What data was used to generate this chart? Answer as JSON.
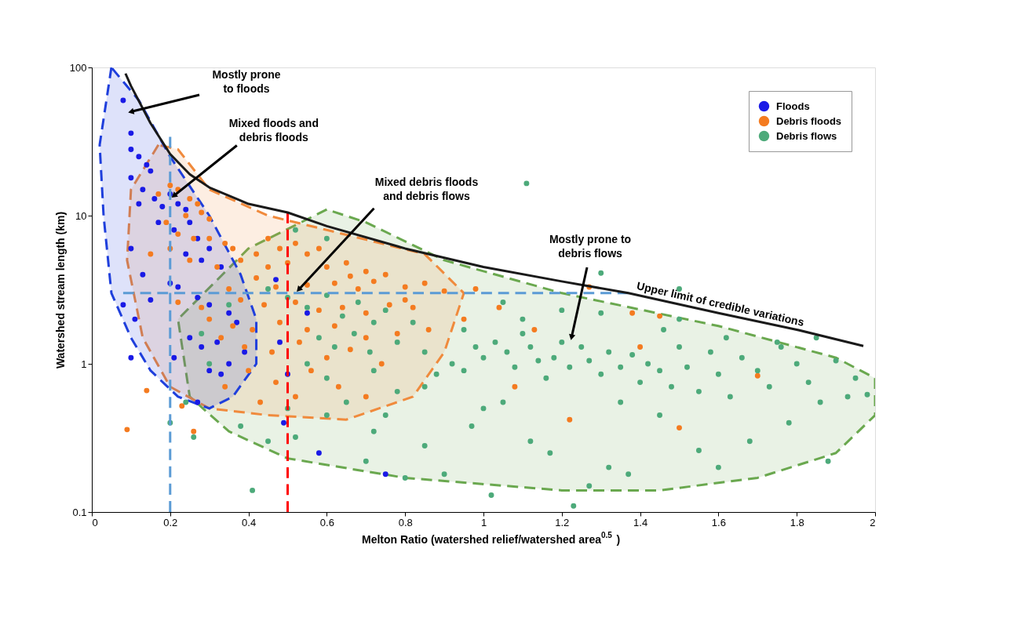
{
  "chart_data": {
    "type": "scatter",
    "xlabel": "Melton Ratio (watershed relief/watershed area$^{0.5}$)",
    "ylabel": "Watershed stream length (km)",
    "xlim": [
      0,
      2
    ],
    "xticks": [
      0,
      0.2,
      0.4,
      0.6,
      0.8,
      1,
      1.2,
      1.4,
      1.6,
      1.8,
      2
    ],
    "ylim": [
      0.1,
      100
    ],
    "yticks": [
      0.1,
      1,
      10,
      100
    ],
    "log": "y",
    "grid": false,
    "legend": "top right",
    "annotations": [
      "Mostly prone\nto floods",
      {
        "text": "Mixed floods and\ndebris floods",
        "x": 0.2,
        "y": 13
      },
      {
        "text": "Mixed debris floods\nand debris flows",
        "x": 0.52,
        "y": 3
      },
      "Mostly prone to\ndebris flows"
    ],
    "series": [
      {
        "type": "area",
        "color": "#6aa84f",
        "line_style": "dashed",
        "x": [
          0.6,
          0.4,
          0.22,
          0.25,
          0.35,
          0.5,
          0.8,
          1.2,
          1.45,
          1.7,
          1.9,
          2.0,
          2.0,
          1.9,
          1.6,
          1.2,
          0.9,
          0.7,
          0.6
        ],
        "values": [
          11,
          6,
          2,
          0.6,
          0.35,
          0.23,
          0.17,
          0.14,
          0.14,
          0.17,
          0.25,
          0.45,
          0.8,
          1.1,
          1.8,
          3,
          5,
          9,
          11
        ]
      },
      {
        "type": "area",
        "color": "#f08a3c",
        "line_style": "dashed",
        "x": [
          0.17,
          0.1,
          0.09,
          0.13,
          0.2,
          0.3,
          0.45,
          0.65,
          0.82,
          0.9,
          0.95,
          0.85,
          0.6,
          0.45,
          0.3,
          0.22,
          0.17
        ],
        "values": [
          30,
          15,
          5,
          1.5,
          0.7,
          0.5,
          0.45,
          0.42,
          0.6,
          1.2,
          3,
          5.5,
          8,
          10,
          15,
          28,
          30
        ]
      },
      {
        "type": "area",
        "color": "#1f3fdc",
        "line_style": "dashed",
        "x": [
          0.05,
          0.02,
          0.03,
          0.05,
          0.1,
          0.15,
          0.22,
          0.3,
          0.36,
          0.42,
          0.42,
          0.38,
          0.3,
          0.2,
          0.12,
          0.05
        ],
        "values": [
          100,
          30,
          10,
          3,
          1.5,
          0.9,
          0.6,
          0.5,
          0.6,
          1,
          2,
          4,
          10,
          25,
          60,
          100
        ]
      },
      {
        "type": "scatter",
        "marker": "circle",
        "name": "Floods",
        "color": "#1a1ae6",
        "x": [
          0.08,
          0.1,
          0.1,
          0.12,
          0.14,
          0.15,
          0.13,
          0.16,
          0.1,
          0.12,
          0.17,
          0.2,
          0.22,
          0.24,
          0.18,
          0.21,
          0.25,
          0.27,
          0.3,
          0.24,
          0.28,
          0.33,
          0.1,
          0.13,
          0.2,
          0.22,
          0.15,
          0.27,
          0.3,
          0.35,
          0.11,
          0.37,
          0.25,
          0.28,
          0.32,
          0.21,
          0.3,
          0.35,
          0.39,
          0.1,
          0.08,
          0.5,
          0.48,
          0.58,
          0.75,
          0.49,
          0.55,
          0.47,
          0.27,
          0.33
        ],
        "values": [
          60,
          36,
          28,
          25,
          22,
          20,
          15,
          13,
          18,
          12,
          9,
          14,
          12,
          11,
          11.5,
          8,
          9,
          7,
          6,
          5.5,
          5,
          4.5,
          6,
          4,
          3.5,
          3.3,
          2.7,
          2.8,
          2.5,
          2.2,
          2,
          1.9,
          1.5,
          1.3,
          1.4,
          1.1,
          0.9,
          1,
          1.2,
          1.1,
          2.5,
          0.85,
          1.4,
          0.25,
          0.18,
          0.4,
          2.2,
          3.7,
          0.55,
          0.85
        ]
      },
      {
        "type": "scatter",
        "marker": "circle",
        "name": "Debris floods",
        "color": "#f47b20",
        "x": [
          0.17,
          0.2,
          0.22,
          0.25,
          0.27,
          0.24,
          0.28,
          0.3,
          0.19,
          0.22,
          0.26,
          0.3,
          0.34,
          0.36,
          0.38,
          0.2,
          0.15,
          0.25,
          0.32,
          0.42,
          0.45,
          0.48,
          0.52,
          0.55,
          0.58,
          0.45,
          0.5,
          0.6,
          0.65,
          0.7,
          0.75,
          0.42,
          0.47,
          0.55,
          0.62,
          0.68,
          0.72,
          0.8,
          0.85,
          0.9,
          0.35,
          0.38,
          0.44,
          0.52,
          0.58,
          0.64,
          0.7,
          0.76,
          0.82,
          0.28,
          0.22,
          0.3,
          0.36,
          0.41,
          0.48,
          0.55,
          0.62,
          0.7,
          0.78,
          0.86,
          0.33,
          0.39,
          0.46,
          0.53,
          0.6,
          0.66,
          0.74,
          0.4,
          0.47,
          0.56,
          0.63,
          0.7,
          0.34,
          0.43,
          0.52,
          0.66,
          0.98,
          0.8,
          1.5,
          1.7,
          1.4,
          1.22,
          1.08,
          0.09,
          0.14,
          0.23,
          0.26,
          1.27,
          1.38,
          1.45,
          1.13,
          1.04,
          0.95
        ],
        "values": [
          14,
          16,
          15,
          13,
          12,
          10,
          10.5,
          9.5,
          9,
          7.5,
          7,
          7,
          6.5,
          6,
          5,
          6,
          5.5,
          5,
          4.5,
          5.5,
          7,
          6,
          6.5,
          5.5,
          6,
          4.5,
          4.8,
          4.5,
          4.8,
          4.2,
          4,
          3.8,
          3.3,
          3.4,
          3.5,
          3.2,
          3.6,
          3.3,
          3.5,
          3.1,
          3.2,
          2.7,
          2.5,
          2.6,
          2.3,
          2.4,
          2.2,
          2.5,
          2.4,
          2.4,
          2.6,
          2,
          1.8,
          1.7,
          1.9,
          1.7,
          1.8,
          1.5,
          1.6,
          1.7,
          1.5,
          1.3,
          1.2,
          1.4,
          1.1,
          1.25,
          1,
          0.9,
          0.75,
          0.9,
          0.7,
          0.6,
          0.7,
          0.55,
          0.6,
          3.9,
          3.2,
          2.7,
          0.37,
          0.83,
          1.3,
          0.42,
          0.7,
          0.36,
          0.66,
          0.52,
          0.35,
          3.3,
          2.2,
          2.1,
          1.7,
          2.4,
          2
        ]
      },
      {
        "type": "scatter",
        "marker": "circle",
        "name": "Debris flows",
        "color": "#4daa7a",
        "x": [
          0.2,
          0.24,
          0.26,
          0.38,
          0.41,
          0.3,
          0.35,
          0.28,
          0.52,
          0.6,
          0.45,
          0.5,
          0.55,
          0.6,
          0.64,
          0.68,
          0.72,
          0.75,
          0.58,
          0.62,
          0.67,
          0.71,
          0.78,
          0.82,
          0.85,
          0.55,
          0.6,
          0.65,
          0.72,
          0.78,
          0.85,
          0.5,
          0.45,
          0.52,
          0.6,
          0.72,
          0.85,
          0.88,
          0.92,
          0.95,
          0.98,
          1.0,
          1.03,
          1.06,
          1.08,
          1.1,
          1.12,
          1.14,
          1.16,
          1.18,
          1.2,
          1.22,
          1.25,
          1.27,
          1.3,
          1.32,
          1.35,
          1.38,
          1.4,
          1.42,
          1.45,
          1.48,
          1.5,
          1.52,
          1.55,
          1.58,
          1.6,
          1.63,
          1.66,
          1.7,
          1.73,
          1.76,
          1.8,
          1.83,
          1.86,
          1.9,
          1.93,
          1.98,
          1.95,
          1.5,
          1.46,
          1.62,
          1.75,
          1.85,
          1.3,
          1.2,
          1.1,
          1.05,
          0.95,
          1.0,
          0.97,
          1.05,
          1.12,
          1.17,
          1.27,
          1.32,
          1.37,
          1.02,
          1.23,
          1.55,
          1.6,
          1.68,
          1.78,
          1.88,
          1.45,
          1.35,
          1.11,
          1.3,
          1.5,
          0.7,
          0.8,
          0.9,
          0.75
        ],
        "values": [
          0.4,
          0.55,
          0.32,
          0.38,
          0.14,
          1.0,
          2.5,
          1.6,
          8,
          7,
          3.2,
          2.8,
          2.4,
          2.9,
          2.1,
          2.6,
          1.9,
          2.3,
          1.5,
          1.3,
          1.6,
          1.2,
          1.4,
          1.9,
          1.2,
          1.0,
          0.8,
          0.55,
          0.9,
          0.65,
          0.7,
          0.5,
          0.3,
          0.32,
          0.45,
          0.35,
          0.28,
          0.85,
          1.0,
          0.9,
          1.3,
          1.1,
          1.4,
          1.2,
          0.95,
          1.6,
          1.3,
          1.05,
          0.8,
          1.1,
          1.4,
          0.95,
          1.3,
          1.05,
          0.85,
          1.2,
          0.95,
          1.15,
          0.75,
          1.0,
          0.9,
          0.7,
          1.3,
          0.95,
          0.65,
          1.2,
          0.85,
          0.6,
          1.1,
          0.9,
          0.7,
          1.3,
          1.0,
          0.75,
          0.55,
          1.05,
          0.6,
          0.62,
          0.8,
          2.0,
          1.7,
          1.5,
          1.4,
          1.5,
          2.2,
          2.3,
          2.0,
          2.6,
          1.7,
          0.5,
          0.38,
          0.55,
          0.3,
          0.25,
          0.15,
          0.2,
          0.18,
          0.13,
          0.11,
          0.26,
          0.2,
          0.3,
          0.4,
          0.22,
          0.45,
          0.55,
          16.5,
          4.1,
          3.2,
          0.22,
          0.17,
          0.18,
          0.45
        ]
      },
      {
        "type": "line",
        "color": "#5b9bd5",
        "line_style": "dashed",
        "x": [
          0.2,
          0.2
        ],
        "values": [
          0.1,
          34
        ]
      },
      {
        "type": "line",
        "color": "#5b9bd5",
        "line_style": "dashed",
        "x": [
          0.08,
          1.37
        ],
        "values": [
          3,
          3
        ]
      },
      {
        "type": "line",
        "color": "#ff0000",
        "line_style": "dashed",
        "x": [
          0.5,
          0.5
        ],
        "values": [
          0.1,
          10.5
        ]
      },
      {
        "type": "line",
        "name": "Upper limit of credible variations",
        "color": "#1a1a1a",
        "line_style": "solid",
        "x": [
          0.086,
          0.1,
          0.15,
          0.2,
          0.25,
          0.3,
          0.4,
          0.5,
          0.6,
          0.8,
          1.0,
          1.2,
          1.37,
          1.6,
          1.8,
          1.97
        ],
        "values": [
          91,
          75,
          42,
          26,
          19,
          15.5,
          12,
          10.5,
          8.5,
          6,
          4.5,
          3.6,
          3.0,
          2.2,
          1.7,
          1.32
        ]
      }
    ]
  }
}
